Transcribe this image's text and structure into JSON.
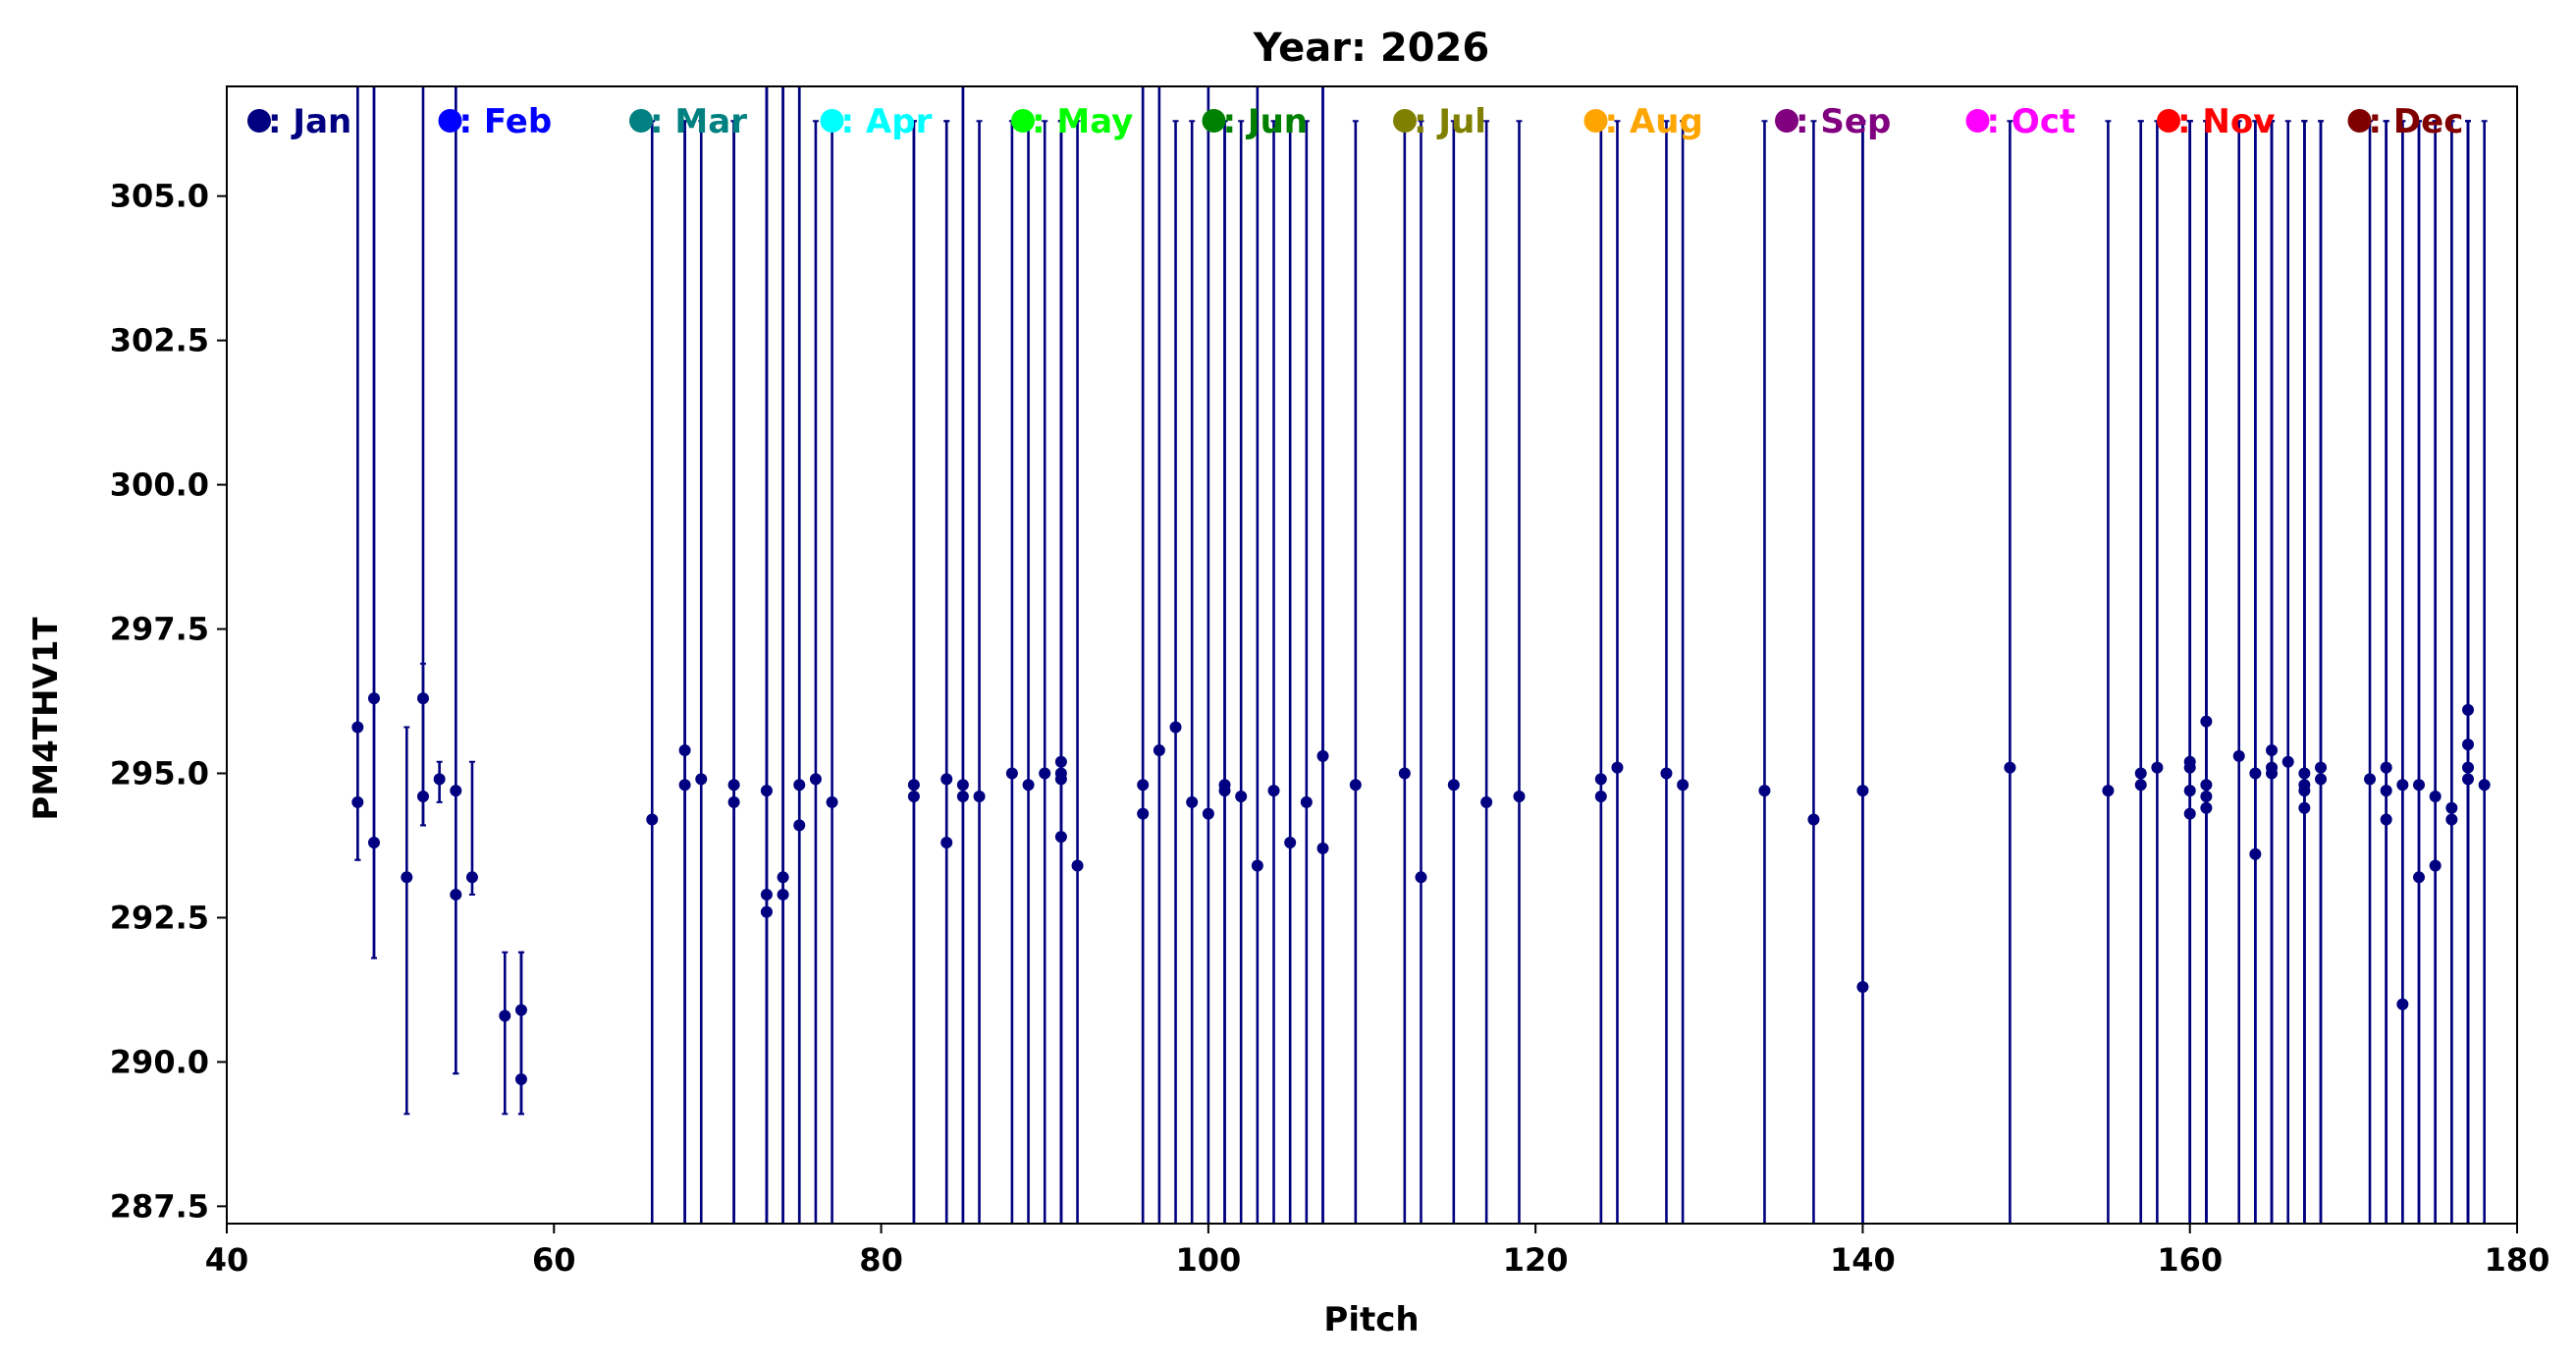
{
  "chart_data": {
    "type": "scatter",
    "title": "Year: 2026",
    "xlabel": "Pitch",
    "ylabel": "PM4THV1T",
    "xlim": [
      40,
      180
    ],
    "ylim": [
      287.2,
      306.9
    ],
    "xticks": [
      40,
      60,
      80,
      100,
      120,
      140,
      160,
      180
    ],
    "yticks": [
      287.5,
      290.0,
      292.5,
      295.0,
      297.5,
      300.0,
      302.5,
      305.0
    ],
    "ytick_labels": [
      "287.5",
      "290.0",
      "292.5",
      "295.0",
      "297.5",
      "300.0",
      "302.5",
      "305.0"
    ],
    "marker_color": "#000080",
    "legend": [
      {
        "label": ": Jan",
        "color": "#000080"
      },
      {
        "label": ": Feb",
        "color": "#0000ff"
      },
      {
        "label": ": Mar",
        "color": "#008080"
      },
      {
        "label": ": Apr",
        "color": "#00ffff"
      },
      {
        "label": ": May",
        "color": "#00ff00"
      },
      {
        "label": ": Jun",
        "color": "#008000"
      },
      {
        "label": ": Jul",
        "color": "#808000"
      },
      {
        "label": ": Aug",
        "color": "#ffa500"
      },
      {
        "label": ": Sep",
        "color": "#800080"
      },
      {
        "label": ": Oct",
        "color": "#ff00ff"
      },
      {
        "label": ": Nov",
        "color": "#ff0000"
      },
      {
        "label": ": Dec",
        "color": "#800000"
      }
    ],
    "points": [
      [
        48,
        295.8,
        293.5,
        306.9
      ],
      [
        48,
        294.5,
        293.5,
        306.9
      ],
      [
        49,
        296.3,
        291.8,
        306.9
      ],
      [
        49,
        293.8,
        291.8,
        306.9
      ],
      [
        51,
        293.2,
        289.1,
        295.8
      ],
      [
        52,
        296.3,
        294.1,
        306.9
      ],
      [
        52,
        294.6,
        294.1,
        296.9
      ],
      [
        53,
        294.9,
        294.5,
        295.2
      ],
      [
        54,
        294.7,
        289.8,
        306.9
      ],
      [
        54,
        292.9,
        289.8,
        306.9
      ],
      [
        55,
        293.2,
        292.9,
        295.2
      ],
      [
        57,
        290.8,
        289.1,
        291.9
      ],
      [
        58,
        290.9,
        289.1,
        291.9
      ],
      [
        58,
        289.7,
        289.1,
        291.9
      ],
      [
        66,
        294.2,
        287.2,
        306.3
      ],
      [
        68,
        295.4,
        287.2,
        306.3
      ],
      [
        68,
        294.8,
        287.2,
        306.3
      ],
      [
        69,
        294.9,
        287.2,
        306.3
      ],
      [
        71,
        294.8,
        287.2,
        306.3
      ],
      [
        71,
        294.5,
        287.2,
        306.3
      ],
      [
        73,
        294.7,
        287.2,
        306.9
      ],
      [
        73,
        292.9,
        287.2,
        306.9
      ],
      [
        73,
        292.6,
        287.2,
        306.9
      ],
      [
        74,
        293.2,
        287.2,
        306.9
      ],
      [
        74,
        292.9,
        287.2,
        306.9
      ],
      [
        75,
        294.8,
        287.2,
        306.9
      ],
      [
        75,
        294.1,
        287.2,
        306.9
      ],
      [
        76,
        294.9,
        287.2,
        306.3
      ],
      [
        77,
        294.5,
        287.2,
        306.3
      ],
      [
        82,
        294.8,
        287.2,
        306.3
      ],
      [
        82,
        294.6,
        287.2,
        306.3
      ],
      [
        84,
        294.9,
        287.2,
        306.3
      ],
      [
        84,
        293.8,
        287.2,
        306.3
      ],
      [
        85,
        294.8,
        287.2,
        306.9
      ],
      [
        85,
        294.6,
        287.2,
        306.9
      ],
      [
        86,
        294.6,
        287.2,
        306.3
      ],
      [
        88,
        295.0,
        287.2,
        306.3
      ],
      [
        89,
        294.8,
        287.2,
        306.3
      ],
      [
        90,
        295.0,
        287.2,
        306.3
      ],
      [
        91,
        295.2,
        287.2,
        306.3
      ],
      [
        91,
        295.0,
        287.2,
        306.3
      ],
      [
        91,
        294.9,
        287.2,
        306.3
      ],
      [
        91,
        293.9,
        287.2,
        306.3
      ],
      [
        92,
        293.4,
        287.2,
        306.3
      ],
      [
        96,
        294.8,
        287.2,
        306.9
      ],
      [
        96,
        294.3,
        287.2,
        306.9
      ],
      [
        97,
        295.4,
        287.2,
        306.9
      ],
      [
        98,
        295.8,
        287.2,
        306.3
      ],
      [
        99,
        294.5,
        287.2,
        306.3
      ],
      [
        100,
        294.3,
        287.2,
        306.9
      ],
      [
        101,
        294.8,
        287.2,
        306.3
      ],
      [
        101,
        294.7,
        287.2,
        306.3
      ],
      [
        102,
        294.6,
        287.2,
        306.3
      ],
      [
        103,
        293.4,
        287.2,
        306.9
      ],
      [
        104,
        294.7,
        287.2,
        306.3
      ],
      [
        105,
        293.8,
        287.2,
        306.3
      ],
      [
        106,
        294.5,
        287.2,
        306.3
      ],
      [
        107,
        295.3,
        287.2,
        306.9
      ],
      [
        107,
        293.7,
        287.2,
        306.9
      ],
      [
        109,
        294.8,
        287.2,
        306.3
      ],
      [
        112,
        295.0,
        287.2,
        306.3
      ],
      [
        113,
        293.2,
        287.2,
        306.3
      ],
      [
        115,
        294.8,
        287.2,
        306.3
      ],
      [
        117,
        294.5,
        287.2,
        306.3
      ],
      [
        119,
        294.6,
        287.2,
        306.3
      ],
      [
        124,
        294.9,
        287.2,
        306.3
      ],
      [
        124,
        294.6,
        287.2,
        306.3
      ],
      [
        125,
        295.1,
        287.2,
        306.3
      ],
      [
        128,
        295.0,
        287.2,
        306.3
      ],
      [
        129,
        294.8,
        287.2,
        306.3
      ],
      [
        134,
        294.7,
        287.2,
        306.3
      ],
      [
        137,
        294.2,
        287.2,
        306.3
      ],
      [
        140,
        294.7,
        287.2,
        306.3
      ],
      [
        140,
        291.3,
        287.2,
        306.3
      ],
      [
        149,
        295.1,
        287.2,
        306.3
      ],
      [
        155,
        294.7,
        287.2,
        306.3
      ],
      [
        157,
        295.0,
        287.2,
        306.3
      ],
      [
        157,
        294.8,
        287.2,
        306.3
      ],
      [
        158,
        295.1,
        287.2,
        306.3
      ],
      [
        160,
        295.2,
        287.2,
        306.3
      ],
      [
        160,
        295.1,
        287.2,
        306.3
      ],
      [
        160,
        294.7,
        287.2,
        306.3
      ],
      [
        160,
        294.3,
        287.2,
        306.3
      ],
      [
        161,
        295.9,
        287.2,
        306.3
      ],
      [
        161,
        294.8,
        287.2,
        306.3
      ],
      [
        161,
        294.6,
        287.2,
        306.3
      ],
      [
        161,
        294.4,
        287.2,
        306.3
      ],
      [
        163,
        295.3,
        287.2,
        306.3
      ],
      [
        164,
        295.0,
        287.2,
        306.3
      ],
      [
        164,
        293.6,
        287.2,
        306.3
      ],
      [
        165,
        295.4,
        287.2,
        306.3
      ],
      [
        165,
        295.1,
        287.2,
        306.3
      ],
      [
        165,
        295.0,
        287.2,
        306.3
      ],
      [
        166,
        295.2,
        287.2,
        306.3
      ],
      [
        167,
        295.0,
        287.2,
        306.3
      ],
      [
        167,
        294.8,
        287.2,
        306.3
      ],
      [
        167,
        294.7,
        287.2,
        306.3
      ],
      [
        167,
        294.4,
        287.2,
        306.3
      ],
      [
        168,
        295.1,
        287.2,
        306.3
      ],
      [
        168,
        294.9,
        287.2,
        306.3
      ],
      [
        171,
        294.9,
        287.2,
        306.3
      ],
      [
        172,
        295.1,
        287.2,
        306.3
      ],
      [
        172,
        294.7,
        287.2,
        306.3
      ],
      [
        172,
        294.2,
        287.2,
        306.3
      ],
      [
        173,
        294.8,
        287.2,
        306.3
      ],
      [
        173,
        291.0,
        287.2,
        306.3
      ],
      [
        174,
        294.8,
        287.2,
        306.3
      ],
      [
        174,
        293.2,
        287.2,
        306.3
      ],
      [
        175,
        294.6,
        287.2,
        306.3
      ],
      [
        175,
        293.4,
        287.2,
        306.3
      ],
      [
        176,
        294.4,
        287.2,
        306.3
      ],
      [
        176,
        294.2,
        287.2,
        306.3
      ],
      [
        177,
        296.1,
        287.2,
        306.3
      ],
      [
        177,
        295.5,
        287.2,
        306.3
      ],
      [
        177,
        295.1,
        287.2,
        306.3
      ],
      [
        177,
        294.9,
        287.2,
        306.3
      ],
      [
        178,
        294.8,
        287.2,
        306.3
      ]
    ]
  }
}
